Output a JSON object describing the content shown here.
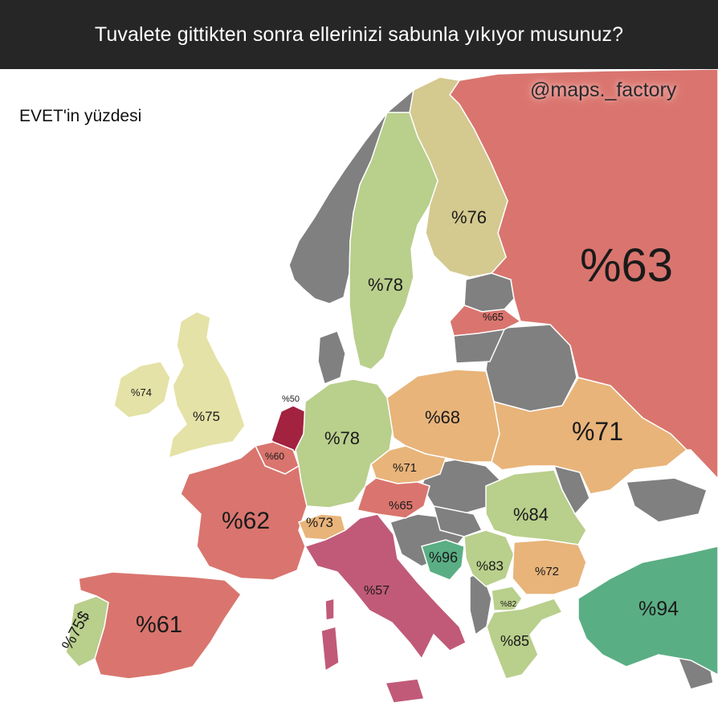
{
  "title": "Tuvalete gittikten sonra ellerinizi sabunla yıkıyor musunuz?",
  "subtitle": "EVET'in yüzdesi",
  "watermark": "@maps._factory",
  "colors": {
    "no_data": "#808080",
    "sea": "#ffffff",
    "scale_low": "#a8335c",
    "scale_mid_low": "#d9756e",
    "scale_mid": "#e8b47a",
    "scale_mid_high": "#d4d89b",
    "scale_high": "#b9cf8c",
    "scale_top": "#5aae84"
  },
  "countries": [
    {
      "name": "Russia",
      "label": "%63",
      "value": 63,
      "color": "#d9756e"
    },
    {
      "name": "Finland",
      "label": "%76",
      "value": 76,
      "color": "#d4c98f"
    },
    {
      "name": "Sweden",
      "label": "%78",
      "value": 78,
      "color": "#b9cf8c"
    },
    {
      "name": "Lithuania",
      "label": "%65",
      "value": 65,
      "color": "#d9756e"
    },
    {
      "name": "Ireland",
      "label": "%74",
      "value": 74,
      "color": "#e4e2a6"
    },
    {
      "name": "United Kingdom",
      "label": "%75",
      "value": 75,
      "color": "#e4e2a6"
    },
    {
      "name": "Netherlands",
      "label": "%50",
      "value": 50,
      "color": "#a2223f"
    },
    {
      "name": "Belgium",
      "label": "%60",
      "value": 60,
      "color": "#d9756e"
    },
    {
      "name": "Germany",
      "label": "%78",
      "value": 78,
      "color": "#b9cf8c"
    },
    {
      "name": "Poland",
      "label": "%68",
      "value": 68,
      "color": "#e8b47a"
    },
    {
      "name": "Ukraine",
      "label": "%71",
      "value": 71,
      "color": "#e8b47a"
    },
    {
      "name": "Czechia",
      "label": "%71",
      "value": 71,
      "color": "#e8b47a"
    },
    {
      "name": "Austria",
      "label": "%65",
      "value": 65,
      "color": "#d9756e"
    },
    {
      "name": "France",
      "label": "%62",
      "value": 62,
      "color": "#d9756e"
    },
    {
      "name": "Switzerland",
      "label": "%73",
      "value": 73,
      "color": "#e8b47a"
    },
    {
      "name": "Romania",
      "label": "%84",
      "value": 84,
      "color": "#b9cf8c"
    },
    {
      "name": "Italy",
      "label": "%57",
      "value": 57,
      "color": "#c05a78"
    },
    {
      "name": "Bosnia and Herzegovina",
      "label": "%96",
      "value": 96,
      "color": "#5aae84"
    },
    {
      "name": "Serbia",
      "label": "%83",
      "value": 83,
      "color": "#b9cf8c"
    },
    {
      "name": "Bulgaria",
      "label": "%72",
      "value": 72,
      "color": "#e8b47a"
    },
    {
      "name": "North Macedonia",
      "label": "%82",
      "value": 82,
      "color": "#b9cf8c"
    },
    {
      "name": "Turkey",
      "label": "%94",
      "value": 94,
      "color": "#5aae84"
    },
    {
      "name": "Portugal",
      "label": "%75$",
      "value": 75,
      "color": "#b9cf8c"
    },
    {
      "name": "Spain",
      "label": "%61",
      "value": 61,
      "color": "#d9756e"
    },
    {
      "name": "Greece",
      "label": "%85",
      "value": 85,
      "color": "#b9cf8c"
    }
  ]
}
